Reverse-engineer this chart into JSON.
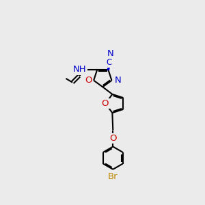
{
  "bg_color": "#ebebeb",
  "bond_color": "#000000",
  "N_color": "#0000cc",
  "O_color": "#cc0000",
  "Br_color": "#bb8800",
  "line_width": 1.5,
  "font_size": 9.5,
  "fig_width": 3.0,
  "fig_height": 3.0,
  "dpi": 100,
  "xlim": [
    0,
    10
  ],
  "ylim": [
    0,
    10
  ]
}
